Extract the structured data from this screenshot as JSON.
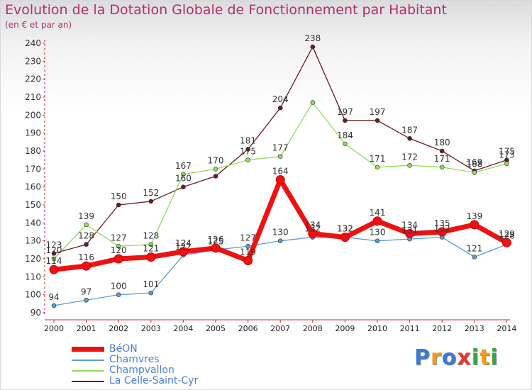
{
  "header": {
    "title": "Evolution de la Dotation Globale de Fonctionnement par Habitant",
    "subtitle": "(en € et par an)"
  },
  "logo": {
    "text": "Proxiti",
    "letters": [
      {
        "ch": "P",
        "color": "#3a7bd5"
      },
      {
        "ch": "r",
        "color": "#f29b1d"
      },
      {
        "ch": "o",
        "color": "#3a7bd5"
      },
      {
        "ch": "x",
        "color": "#e8352e"
      },
      {
        "ch": "i",
        "color": "#3aa34a"
      },
      {
        "ch": "t",
        "color": "#f29b1d"
      },
      {
        "ch": "i",
        "color": "#3aa34a"
      }
    ]
  },
  "chart_data": {
    "type": "line",
    "title": "Evolution de la Dotation Globale de Fonctionnement par Habitant",
    "subtitle": "(en € et par an)",
    "x": [
      "2000",
      "2001",
      "2002",
      "2003",
      "2004",
      "2005",
      "2006",
      "2007",
      "2008",
      "2009",
      "2010",
      "2011",
      "2012",
      "2013",
      "2014"
    ],
    "ylim": [
      90,
      240
    ],
    "yticks": [
      90,
      100,
      110,
      120,
      130,
      140,
      150,
      160,
      170,
      180,
      190,
      200,
      210,
      220,
      230,
      240
    ],
    "grid": false,
    "legend_position": "bottom-left",
    "series": [
      {
        "name": "La Celle-Saint-Cyr",
        "color": "#6b1a22",
        "width": 1.3,
        "marker": 3,
        "values": [
          123,
          128,
          150,
          152,
          160,
          166,
          181,
          204,
          238,
          197,
          197,
          187,
          180,
          169,
          175
        ]
      },
      {
        "name": "Champvallon",
        "color": "#8fdc5a",
        "width": 1.3,
        "marker": 3,
        "values": [
          120,
          139,
          127,
          128,
          167,
          170,
          175,
          177,
          207,
          184,
          171,
          172,
          171,
          168,
          173
        ]
      },
      {
        "name": "Chamvres",
        "color": "#5a9bd5",
        "width": 1.3,
        "marker": 3,
        "values": [
          94,
          97,
          100,
          101,
          122,
          125,
          127,
          130,
          132,
          132,
          130,
          131,
          132,
          121,
          128
        ]
      },
      {
        "name": "BéON",
        "color": "#ee1111",
        "width": 7,
        "marker": 6,
        "values": [
          114,
          116,
          120,
          121,
          124,
          126,
          119,
          164,
          134,
          132,
          141,
          134,
          135,
          139,
          129
        ]
      }
    ],
    "labels_shown": {
      "La Celle-Saint-Cyr": [
        "123",
        "128",
        "150",
        "152",
        "160",
        "",
        "181",
        "204",
        "238",
        "197",
        "197",
        "187",
        "180",
        "169",
        "175"
      ],
      "Champvallon": [
        "120",
        "139",
        "127",
        "128",
        "167",
        "170",
        "175",
        "177",
        "",
        "184",
        "171",
        "172",
        "171",
        "168",
        "173"
      ],
      "Chamvres": [
        "94",
        "97",
        "100",
        "101",
        "122",
        "125",
        "127",
        "130",
        "132",
        "132",
        "130",
        "131",
        "132",
        "121",
        "128"
      ],
      "BéON": [
        "114",
        "116",
        "120",
        "121",
        "124",
        "126",
        "119",
        "164",
        "134",
        "132",
        "141",
        "134",
        "135",
        "139",
        "129"
      ]
    }
  },
  "legend": {
    "items": [
      {
        "label": "BéON",
        "color": "#ee1111",
        "thickness": 7
      },
      {
        "label": "Chamvres",
        "color": "#5a9bd5",
        "thickness": 2
      },
      {
        "label": "Champvallon",
        "color": "#8fdc5a",
        "thickness": 2
      },
      {
        "label": "La Celle-Saint-Cyr",
        "color": "#6b1a22",
        "thickness": 2
      }
    ]
  }
}
